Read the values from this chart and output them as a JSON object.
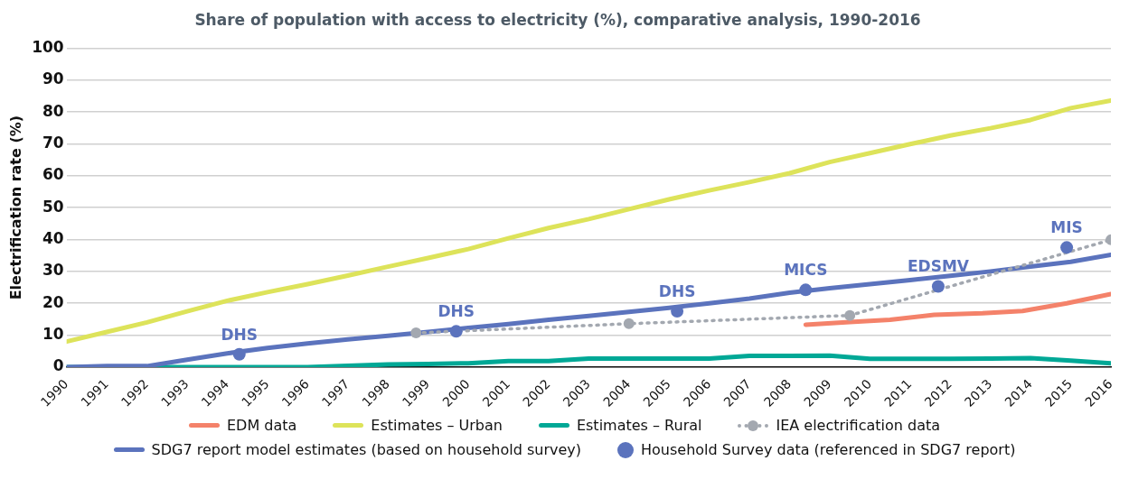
{
  "chart_data": {
    "type": "line",
    "title": "Share of population with access to electricity (%), comparative analysis, 1990-2016",
    "ylabel": "Electrification rate (%)",
    "xlim": [
      1990,
      2016
    ],
    "xticks": [
      1990,
      1991,
      1992,
      1993,
      1994,
      1995,
      1996,
      1997,
      1998,
      1999,
      2000,
      2001,
      2002,
      2003,
      2004,
      2005,
      2006,
      2007,
      2008,
      2009,
      2010,
      2011,
      2012,
      2013,
      2014,
      2015,
      2016
    ],
    "ylim": [
      0,
      100
    ],
    "yticks": [
      0,
      10,
      20,
      30,
      40,
      50,
      60,
      70,
      80,
      90,
      100
    ],
    "grid": "y",
    "legend": "bottom",
    "marker": "none",
    "line_style": "solid",
    "series": [
      {
        "name": "EDM data",
        "color": "#f4826a",
        "x": [
          2008.4,
          2009.5,
          2010.5,
          2011.6,
          2012.8,
          2013.8,
          2014.9,
          2016
        ],
        "values": [
          13.3,
          14.1,
          14.8,
          16.4,
          16.9,
          17.6,
          20,
          22.9
        ]
      },
      {
        "name": "Estimates – Urban",
        "color": "#dde35a",
        "x": [
          1990,
          1991,
          1992,
          1993,
          1994,
          1995,
          1996,
          1997,
          1998,
          1999,
          2000,
          2001,
          2002,
          2003,
          2004,
          2005,
          2006,
          2007,
          2008,
          2009,
          2010,
          2011,
          2012,
          2013,
          2014,
          2015,
          2016
        ],
        "values": [
          8,
          11,
          14,
          17.5,
          20.8,
          23.5,
          26,
          28.7,
          31.5,
          34.2,
          37,
          40.4,
          43.6,
          46.4,
          49.5,
          52.6,
          55.4,
          58,
          60.8,
          64.3,
          67.1,
          69.9,
          72.6,
          74.9,
          77.5,
          81.2,
          83.6
        ]
      },
      {
        "name": "Estimates – Rural",
        "color": "#00a896",
        "x": [
          1990,
          1991,
          1992,
          1993,
          1994,
          1995,
          1996,
          1997,
          1998,
          1999,
          2000,
          2001,
          2002,
          2003,
          2004,
          2005,
          2006,
          2007,
          2008,
          2009,
          2010,
          2011,
          2012,
          2013,
          2014,
          2015,
          2016
        ],
        "values": [
          0,
          0,
          0,
          0,
          0,
          0,
          0,
          0.4,
          0.8,
          1,
          1.2,
          1.9,
          1.9,
          2.7,
          2.7,
          2.7,
          2.7,
          3.5,
          3.5,
          3.6,
          2.6,
          2.6,
          2.6,
          2.7,
          2.8,
          2,
          1.2
        ]
      },
      {
        "name": "IEA electrification data",
        "color": "#a3a8b0",
        "marker": "circle",
        "line_style": "dotted",
        "x": [
          1998.7,
          2004,
          2009.5,
          2016
        ],
        "values": [
          10.7,
          13.6,
          16.2,
          39.9
        ]
      },
      {
        "name": "SDG7 report model estimates (based on household survey)",
        "color": "#5b73bd",
        "x": [
          1990,
          1991,
          1992,
          1993,
          1994,
          1995,
          1996,
          1997,
          1998,
          1999,
          2000,
          2001,
          2002,
          2003,
          2004,
          2005,
          2006,
          2007,
          2008,
          2009,
          2010,
          2011,
          2012,
          2013,
          2014,
          2015,
          2016
        ],
        "values": [
          0,
          0.3,
          0.3,
          2.3,
          4.3,
          6,
          7.4,
          8.7,
          9.8,
          11,
          12.3,
          13.5,
          14.8,
          16,
          17.3,
          18.6,
          20,
          21.5,
          23.3,
          24.7,
          26,
          27.3,
          28.6,
          30,
          31.5,
          33,
          35.2
        ]
      },
      {
        "name": "Household Survey data (referenced in SDG7 report)",
        "type": "scatter",
        "marker": "circle",
        "color": "#5b73bd",
        "x": [
          1994.3,
          1999.7,
          2005.2,
          2008.4,
          2011.7,
          2014.9
        ],
        "values": [
          4,
          11.2,
          17.5,
          24.2,
          25.3,
          37.5
        ]
      }
    ],
    "annotations": [
      {
        "text": "DHS",
        "x": 1994.3,
        "y": 4
      },
      {
        "text": "DHS",
        "x": 1999.7,
        "y": 11.2
      },
      {
        "text": "DHS",
        "x": 2005.2,
        "y": 17.5
      },
      {
        "text": "MICS",
        "x": 2008.4,
        "y": 24.2
      },
      {
        "text": "EDSMV",
        "x": 2011.7,
        "y": 25.3
      },
      {
        "text": "MIS",
        "x": 2014.9,
        "y": 37.5
      }
    ]
  }
}
